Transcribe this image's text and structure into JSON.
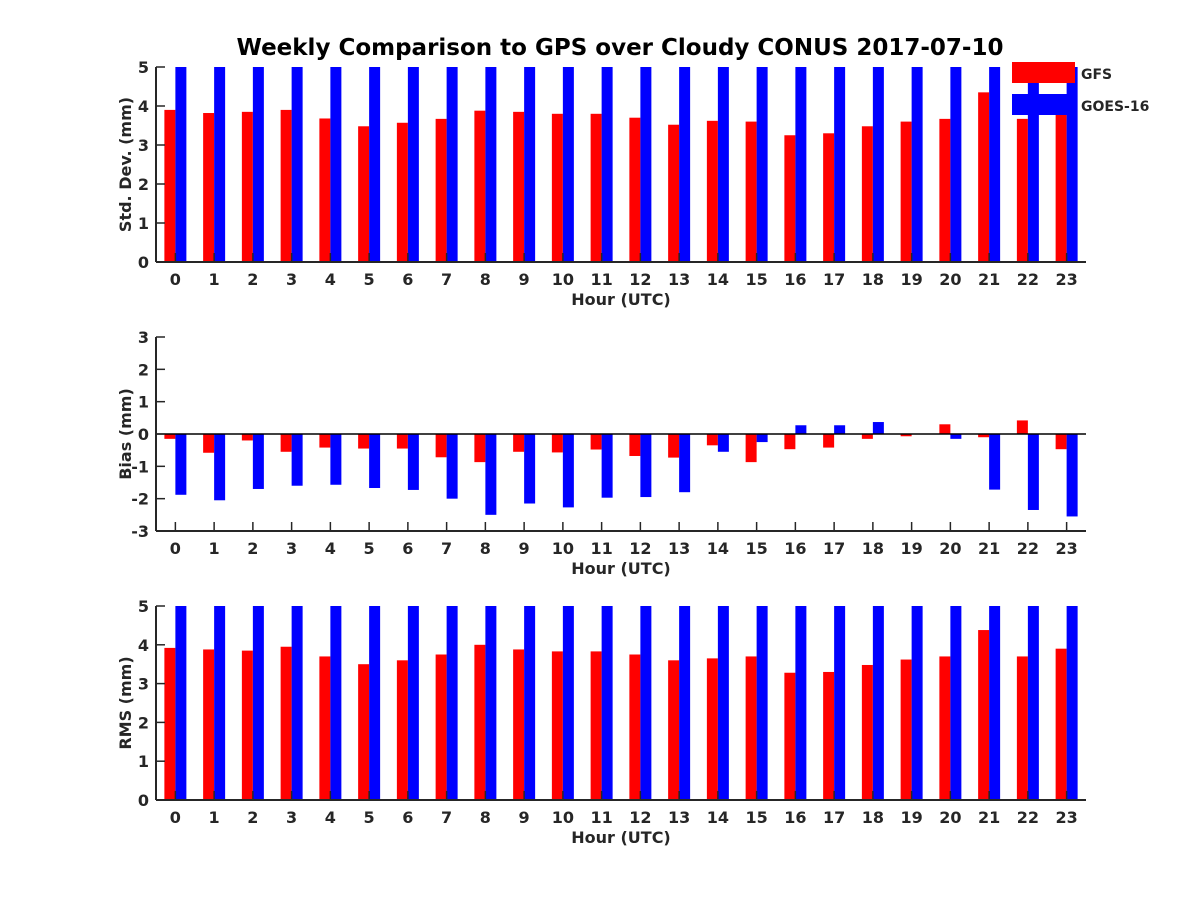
{
  "chart_data": {
    "title": "Weekly Comparison to GPS over Cloudy CONUS 2017-07-10",
    "legend": {
      "placement": "top-right",
      "entries": [
        {
          "name": "GFS",
          "color": "#ff0000"
        },
        {
          "name": "GOES-16",
          "color": "#0000ff"
        }
      ]
    },
    "panels": [
      {
        "type": "bar",
        "ylabel": "Std. Dev. (mm)",
        "xlabel": "Hour (UTC)",
        "ylim": [
          0,
          5
        ],
        "yticks": [
          0,
          1,
          2,
          3,
          4,
          5
        ],
        "categories": [
          "0",
          "1",
          "2",
          "3",
          "4",
          "5",
          "6",
          "7",
          "8",
          "9",
          "10",
          "11",
          "12",
          "13",
          "14",
          "15",
          "16",
          "17",
          "18",
          "19",
          "20",
          "21",
          "22",
          "23"
        ],
        "series": [
          {
            "name": "GFS",
            "color": "#ff0000",
            "values": [
              3.9,
              3.82,
              3.85,
              3.9,
              3.68,
              3.48,
              3.57,
              3.67,
              3.88,
              3.85,
              3.8,
              3.8,
              3.7,
              3.52,
              3.62,
              3.6,
              3.25,
              3.3,
              3.48,
              3.6,
              3.67,
              4.35,
              3.67,
              3.85
            ]
          },
          {
            "name": "GOES-16",
            "color": "#0000ff",
            "values": [
              5,
              5,
              5,
              5,
              5,
              5,
              5,
              5,
              5,
              5,
              5,
              5,
              5,
              5,
              5,
              5,
              5,
              5,
              5,
              5,
              5,
              5,
              5,
              5
            ]
          }
        ]
      },
      {
        "type": "bar",
        "ylabel": "Bias (mm)",
        "xlabel": "Hour (UTC)",
        "ylim": [
          -3,
          3
        ],
        "yticks": [
          -3,
          -2,
          -1,
          0,
          1,
          2,
          3
        ],
        "zero_line": true,
        "categories": [
          "0",
          "1",
          "2",
          "3",
          "4",
          "5",
          "6",
          "7",
          "8",
          "9",
          "10",
          "11",
          "12",
          "13",
          "14",
          "15",
          "16",
          "17",
          "18",
          "19",
          "20",
          "21",
          "22",
          "23"
        ],
        "series": [
          {
            "name": "GFS",
            "color": "#ff0000",
            "values": [
              -0.15,
              -0.58,
              -0.2,
              -0.55,
              -0.42,
              -0.45,
              -0.45,
              -0.72,
              -0.87,
              -0.55,
              -0.57,
              -0.48,
              -0.68,
              -0.73,
              -0.35,
              -0.87,
              -0.47,
              -0.42,
              -0.15,
              -0.07,
              0.3,
              -0.1,
              0.42,
              -0.47
            ]
          },
          {
            "name": "GOES-16",
            "color": "#0000ff",
            "values": [
              -1.88,
              -2.05,
              -1.7,
              -1.6,
              -1.57,
              -1.67,
              -1.73,
              -2.0,
              -2.5,
              -2.15,
              -2.27,
              -1.97,
              -1.95,
              -1.8,
              -0.55,
              -0.25,
              0.27,
              0.27,
              0.37,
              0.0,
              -0.15,
              -1.72,
              -2.35,
              -2.55
            ]
          }
        ]
      },
      {
        "type": "bar",
        "ylabel": "RMS (mm)",
        "xlabel": "Hour (UTC)",
        "ylim": [
          0,
          5
        ],
        "yticks": [
          0,
          1,
          2,
          3,
          4,
          5
        ],
        "categories": [
          "0",
          "1",
          "2",
          "3",
          "4",
          "5",
          "6",
          "7",
          "8",
          "9",
          "10",
          "11",
          "12",
          "13",
          "14",
          "15",
          "16",
          "17",
          "18",
          "19",
          "20",
          "21",
          "22",
          "23"
        ],
        "series": [
          {
            "name": "GFS",
            "color": "#ff0000",
            "values": [
              3.92,
              3.88,
              3.85,
              3.95,
              3.7,
              3.5,
              3.6,
              3.75,
              4.0,
              3.88,
              3.83,
              3.83,
              3.75,
              3.6,
              3.65,
              3.7,
              3.28,
              3.3,
              3.48,
              3.62,
              3.7,
              4.38,
              3.7,
              3.9
            ]
          },
          {
            "name": "GOES-16",
            "color": "#0000ff",
            "values": [
              5,
              5,
              5,
              5,
              5,
              5,
              5,
              5,
              5,
              5,
              5,
              5,
              5,
              5,
              5,
              5,
              5,
              5,
              5,
              5,
              5,
              5,
              5,
              5
            ]
          }
        ]
      }
    ]
  }
}
